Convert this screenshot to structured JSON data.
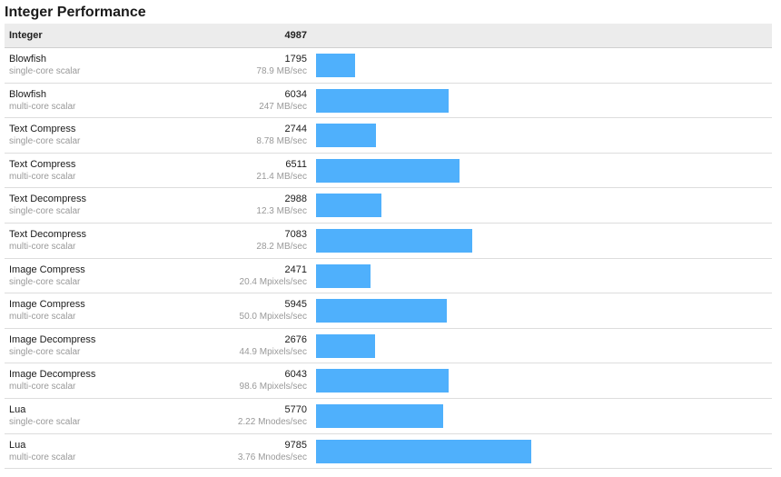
{
  "title": "Integer Performance",
  "header": {
    "name": "Integer",
    "score": "4987"
  },
  "chart_data": {
    "type": "bar",
    "orientation": "horizontal",
    "title": "Integer Performance",
    "color": "#4fb0fc",
    "rows": [
      {
        "name": "Blowfish",
        "mode": "single-core scalar",
        "score": 1795,
        "rate": "78.9 MB/sec"
      },
      {
        "name": "Blowfish",
        "mode": "multi-core scalar",
        "score": 6034,
        "rate": "247 MB/sec"
      },
      {
        "name": "Text Compress",
        "mode": "single-core scalar",
        "score": 2744,
        "rate": "8.78 MB/sec"
      },
      {
        "name": "Text Compress",
        "mode": "multi-core scalar",
        "score": 6511,
        "rate": "21.4 MB/sec"
      },
      {
        "name": "Text Decompress",
        "mode": "single-core scalar",
        "score": 2988,
        "rate": "12.3 MB/sec"
      },
      {
        "name": "Text Decompress",
        "mode": "multi-core scalar",
        "score": 7083,
        "rate": "28.2 MB/sec"
      },
      {
        "name": "Image Compress",
        "mode": "single-core scalar",
        "score": 2471,
        "rate": "20.4 Mpixels/sec"
      },
      {
        "name": "Image Compress",
        "mode": "multi-core scalar",
        "score": 5945,
        "rate": "50.0 Mpixels/sec"
      },
      {
        "name": "Image Decompress",
        "mode": "single-core scalar",
        "score": 2676,
        "rate": "44.9 Mpixels/sec"
      },
      {
        "name": "Image Decompress",
        "mode": "multi-core scalar",
        "score": 6043,
        "rate": "98.6 Mpixels/sec"
      },
      {
        "name": "Lua",
        "mode": "single-core scalar",
        "score": 5770,
        "rate": "2.22 Mnodes/sec"
      },
      {
        "name": "Lua",
        "mode": "multi-core scalar",
        "score": 9785,
        "rate": "3.76 Mnodes/sec"
      }
    ]
  }
}
